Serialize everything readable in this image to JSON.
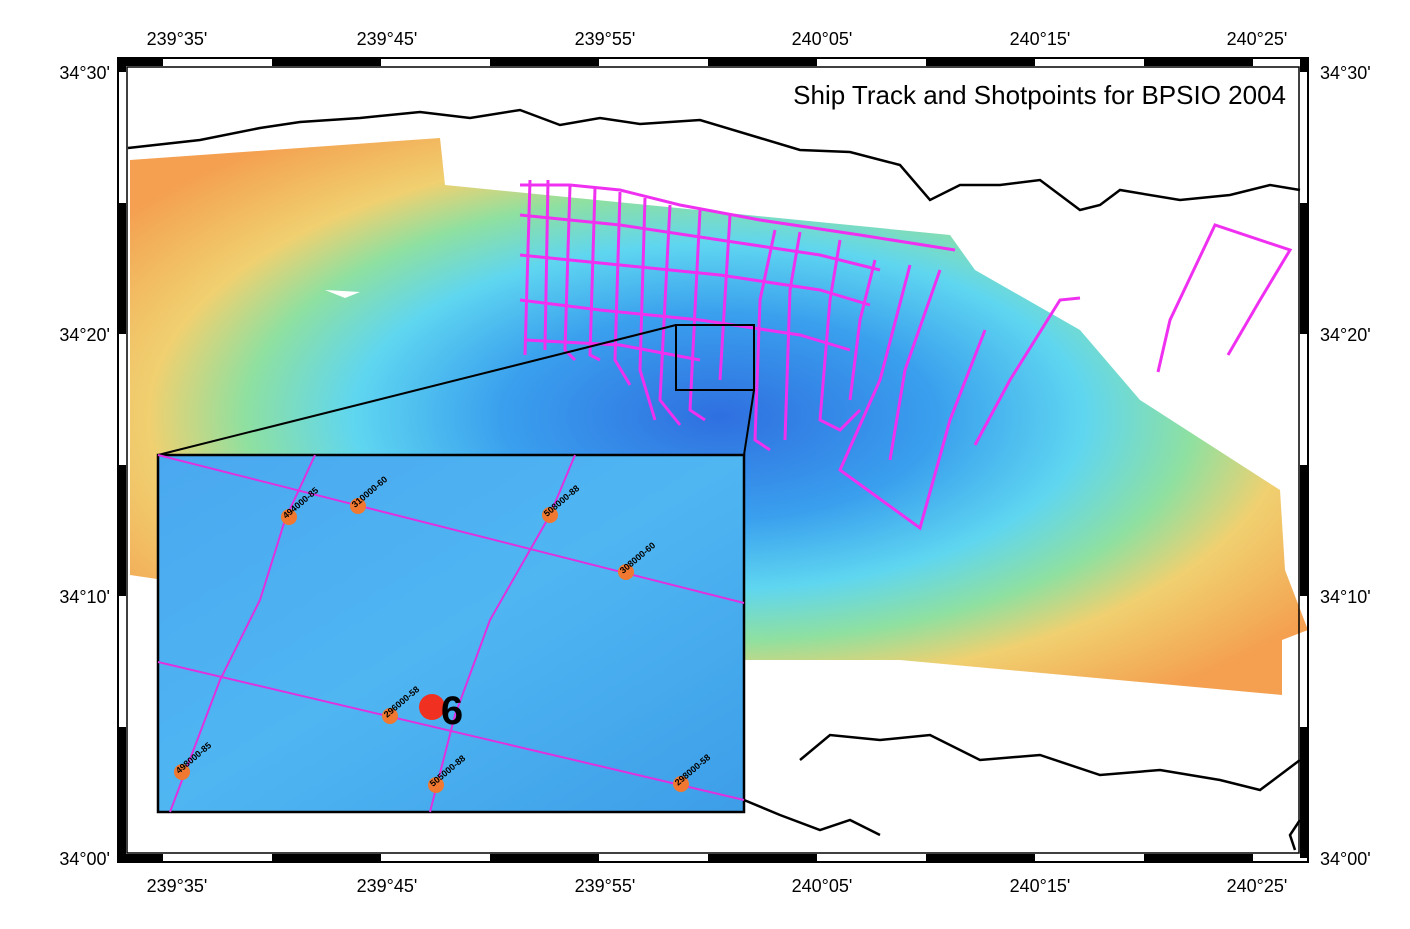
{
  "title": "Ship Track and Shotpoints for BPSIO 2004",
  "longitude_labels": [
    "239°35'",
    "239°45'",
    "239°55'",
    "240°05'",
    "240°15'",
    "240°25'"
  ],
  "latitude_labels": [
    "34°30'",
    "34°20'",
    "34°10'",
    "34°00'"
  ],
  "inset": {
    "shotpoints": [
      {
        "label": "494000-85"
      },
      {
        "label": "310000-60"
      },
      {
        "label": "508000-88"
      },
      {
        "label": "308000-60"
      },
      {
        "label": "296000-58"
      },
      {
        "label": "498000-85"
      },
      {
        "label": "505000-88"
      },
      {
        "label": "298000-58"
      }
    ],
    "marker": "6"
  }
}
